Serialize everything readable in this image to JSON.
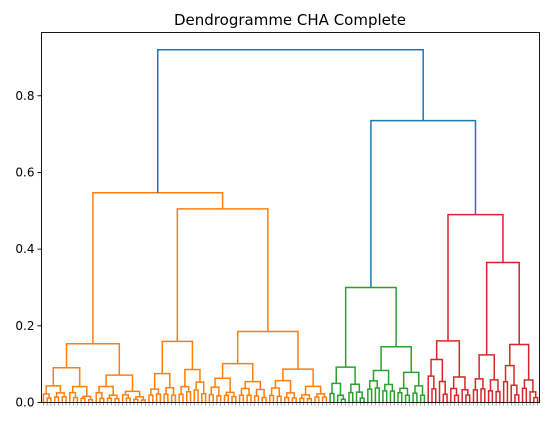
{
  "chart_data": {
    "type": "dendrogram",
    "title": "Dendrogramme CHA Complete",
    "xlabel": "",
    "ylabel": "",
    "ylim": [
      0,
      0.965
    ],
    "y_ticks": [
      0.0,
      0.2,
      0.4,
      0.6,
      0.8
    ],
    "y_tick_labels": [
      "0.0",
      "0.2",
      "0.4",
      "0.6",
      "0.8"
    ],
    "grid": false,
    "legend": "none",
    "leaf_count": 132,
    "colors": {
      "root": "#1f77b4",
      "cluster_1": "#ff7f0e",
      "cluster_2": "#2ca02c",
      "cluster_3": "#d62728"
    },
    "top_merges": [
      {
        "name": "root",
        "height": 0.92
      },
      {
        "name": "cluster_2+cluster_3",
        "height": 0.735
      },
      {
        "name": "cluster_1",
        "height": 0.547
      },
      {
        "name": "cluster_3",
        "height": 0.49
      },
      {
        "name": "cluster_2",
        "height": 0.3
      }
    ],
    "clusters": [
      {
        "name": "cluster_1",
        "color_key": "cluster_1",
        "leaf_range": [
          0,
          76
        ],
        "height": 0.547
      },
      {
        "name": "cluster_2",
        "color_key": "cluster_2",
        "leaf_range": [
          76,
          102
        ],
        "height": 0.3
      },
      {
        "name": "cluster_3",
        "color_key": "cluster_3",
        "leaf_range": [
          102,
          132
        ],
        "height": 0.49
      }
    ]
  }
}
